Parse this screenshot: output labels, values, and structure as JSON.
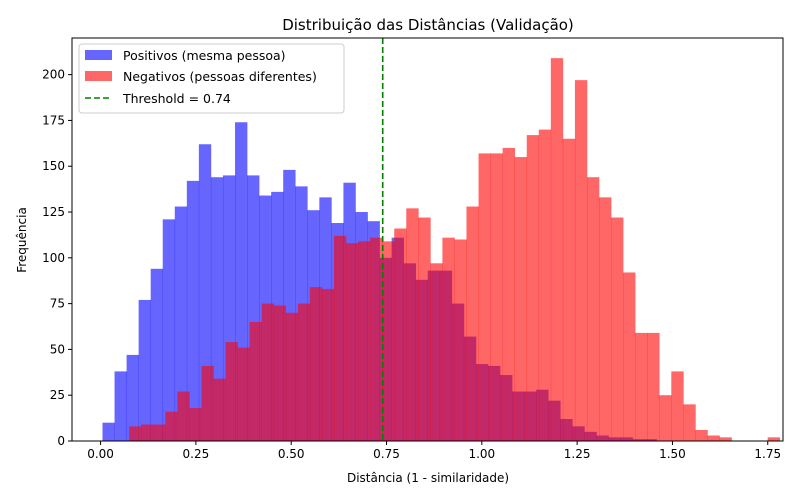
{
  "chart_data": {
    "type": "bar",
    "title": "Distribuição das Distâncias (Validação)",
    "xlabel": "Distância (1 - similaridade)",
    "ylabel": "Frequência",
    "xlim": [
      -0.075,
      1.79
    ],
    "ylim": [
      0,
      220
    ],
    "xticks": [
      0.0,
      0.25,
      0.5,
      0.75,
      1.0,
      1.25,
      1.5,
      1.75
    ],
    "xtick_labels": [
      "0.00",
      "0.25",
      "0.50",
      "0.75",
      "1.00",
      "1.25",
      "1.50",
      "1.75"
    ],
    "yticks": [
      0,
      25,
      50,
      75,
      100,
      125,
      150,
      175,
      200
    ],
    "grid": false,
    "legend_position": "top-left",
    "series": [
      {
        "name": "Positivos (mesma pessoa)",
        "color": "#0000ff",
        "opacity": 0.6,
        "bin_start": 0.005,
        "bin_width": 0.0316,
        "values": [
          10,
          38,
          47,
          77,
          94,
          121,
          128,
          142,
          162,
          144,
          145,
          174,
          145,
          134,
          136,
          148,
          139,
          126,
          133,
          119,
          141,
          125,
          120,
          100,
          111,
          97,
          88,
          93,
          93,
          75,
          57,
          42,
          41,
          36,
          27,
          27,
          28,
          22,
          12,
          8,
          5,
          3,
          2,
          2,
          1,
          1
        ]
      },
      {
        "name": "Negativos (pessoas diferentes)",
        "color": "#ff0000",
        "opacity": 0.6,
        "bin_start": 0.075,
        "bin_width": 0.0316,
        "values": [
          8,
          9,
          9,
          16,
          27,
          18,
          41,
          34,
          54,
          51,
          65,
          75,
          74,
          70,
          75,
          84,
          83,
          112,
          108,
          109,
          111,
          109,
          116,
          127,
          122,
          97,
          111,
          110,
          128,
          157,
          157,
          160,
          155,
          167,
          170,
          209,
          165,
          197,
          144,
          133,
          122,
          92,
          59,
          59,
          25,
          38,
          20,
          6,
          3,
          2,
          0,
          0,
          0,
          2
        ]
      }
    ],
    "threshold": {
      "label": "Threshold = 0.74",
      "value": 0.74,
      "color": "#008000",
      "style": "dashed"
    }
  }
}
